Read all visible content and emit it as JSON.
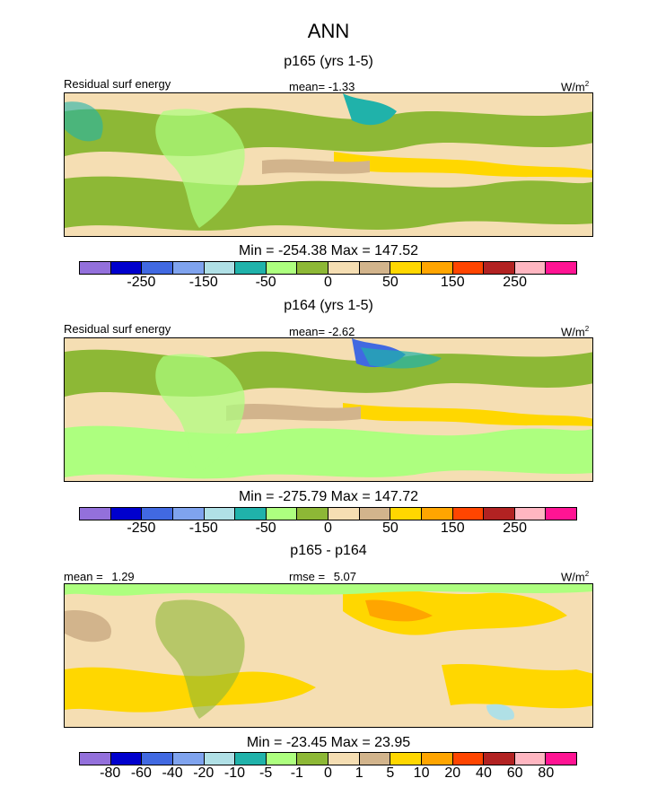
{
  "title": "ANN",
  "units_main": "W/m",
  "units_sup": "2",
  "palette_main": [
    "#9370DB",
    "#0000CD",
    "#4169E1",
    "#7FA3EE",
    "#B0E0E6",
    "#20B2AA",
    "#ADFF7F",
    "#8DB836",
    "#F5DEB3",
    "#D2B48C",
    "#FFD700",
    "#FFA500",
    "#FF4500",
    "#B22222",
    "#FFB6C1",
    "#FF1493"
  ],
  "panels": [
    {
      "heading": "p165 (yrs 1-5)",
      "left_label": "Residual surf energy",
      "stat_label": "mean=",
      "stat_value": "-1.33",
      "minmax": "Min = -254.38 Max = 147.52",
      "ticks": [
        "-250",
        "-150",
        "-50",
        "0",
        "50",
        "150",
        "250"
      ]
    },
    {
      "heading": "p164 (yrs 1-5)",
      "left_label": "Residual surf energy",
      "stat_label": "mean=",
      "stat_value": "-2.62",
      "minmax": "Min = -275.79 Max = 147.72",
      "ticks": [
        "-250",
        "-150",
        "-50",
        "0",
        "50",
        "150",
        "250"
      ]
    },
    {
      "heading": "p165 - p164",
      "left_label": "mean =",
      "left_value": "1.29",
      "stat_label": "rmse =",
      "stat_value": "5.07",
      "minmax": "Min = -23.45 Max = 23.95",
      "ticks": [
        "-80",
        "-60",
        "-40",
        "-20",
        "-10",
        "-5",
        "-1",
        "0",
        "1",
        "5",
        "10",
        "20",
        "40",
        "60",
        "80"
      ]
    }
  ],
  "chart_data": [
    {
      "type": "heatmap",
      "title": "p165 (yrs 1-5)",
      "variable": "Residual surf energy",
      "units": "W/m2",
      "mean": -1.33,
      "min": -254.38,
      "max": 147.52,
      "colorbar_levels": [
        -300,
        -250,
        -200,
        -150,
        -100,
        -50,
        -25,
        0,
        25,
        50,
        100,
        150,
        200,
        250,
        300
      ],
      "colorbar_tick_labels": [
        "-250",
        "-150",
        "-50",
        "0",
        "50",
        "150",
        "250"
      ]
    },
    {
      "type": "heatmap",
      "title": "p164 (yrs 1-5)",
      "variable": "Residual surf energy",
      "units": "W/m2",
      "mean": -2.62,
      "min": -275.79,
      "max": 147.72,
      "colorbar_levels": [
        -300,
        -250,
        -200,
        -150,
        -100,
        -50,
        -25,
        0,
        25,
        50,
        100,
        150,
        200,
        250,
        300
      ],
      "colorbar_tick_labels": [
        "-250",
        "-150",
        "-50",
        "0",
        "50",
        "150",
        "250"
      ]
    },
    {
      "type": "heatmap",
      "title": "p165 - p164",
      "units": "W/m2",
      "mean": 1.29,
      "rmse": 5.07,
      "min": -23.45,
      "max": 23.95,
      "colorbar_levels": [
        -80,
        -60,
        -40,
        -20,
        -10,
        -5,
        -1,
        0,
        1,
        5,
        10,
        20,
        40,
        60,
        80
      ],
      "colorbar_tick_labels": [
        "-80",
        "-60",
        "-40",
        "-20",
        "-10",
        "-5",
        "-1",
        "0",
        "1",
        "5",
        "10",
        "20",
        "40",
        "60",
        "80"
      ]
    }
  ]
}
